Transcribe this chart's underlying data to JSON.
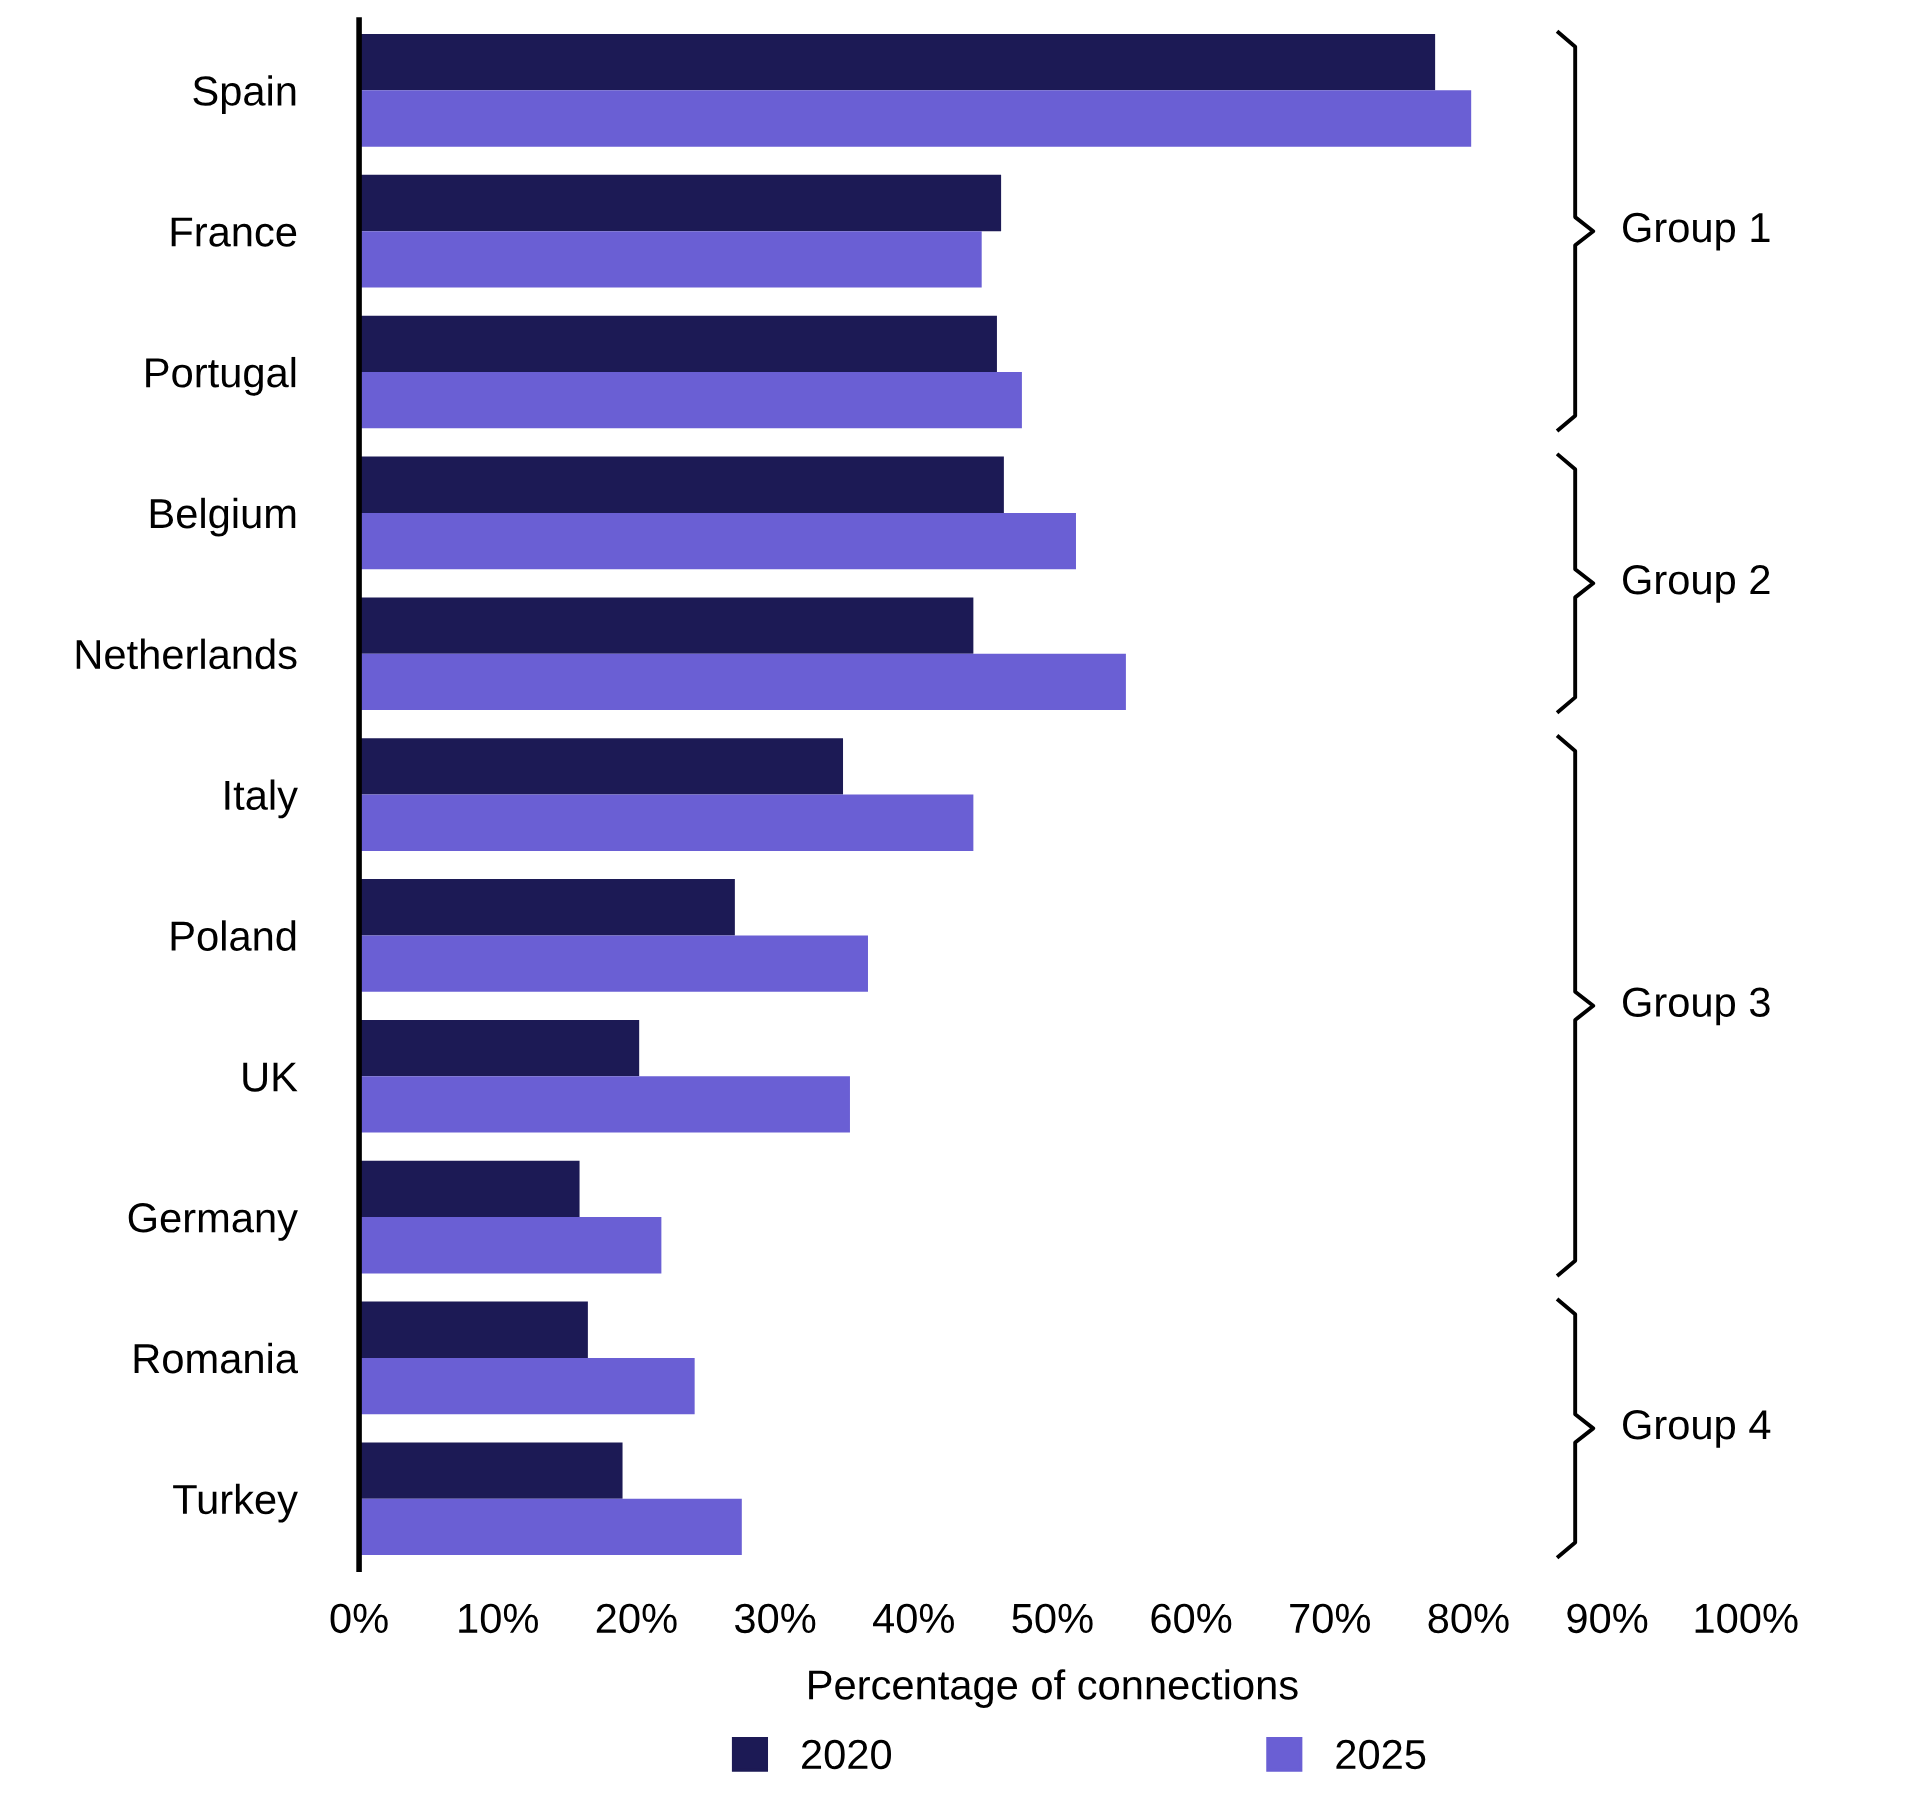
{
  "chart_data": {
    "type": "bar",
    "orientation": "horizontal",
    "xlabel": "Percentage of connections",
    "categories": [
      "Spain",
      "France",
      "Portugal",
      "Belgium",
      "Netherlands",
      "Italy",
      "Poland",
      "UK",
      "Germany",
      "Romania",
      "Turkey"
    ],
    "series": [
      {
        "name": "2020",
        "color": "#1c1a55",
        "values": [
          77.6,
          46.3,
          46.0,
          46.5,
          44.3,
          34.9,
          27.1,
          20.2,
          15.9,
          16.5,
          19.0
        ]
      },
      {
        "name": "2025",
        "color": "#6a5fd4",
        "values": [
          80.2,
          44.9,
          47.8,
          51.7,
          55.3,
          44.3,
          36.7,
          35.4,
          21.8,
          24.2,
          27.6
        ]
      }
    ],
    "xlim": [
      0,
      100
    ],
    "xticks": [
      {
        "value": 0,
        "label": "0%"
      },
      {
        "value": 10,
        "label": "10%"
      },
      {
        "value": 20,
        "label": "20%"
      },
      {
        "value": 30,
        "label": "30%"
      },
      {
        "value": 40,
        "label": "40%"
      },
      {
        "value": 50,
        "label": "50%"
      },
      {
        "value": 60,
        "label": "60%"
      },
      {
        "value": 70,
        "label": "70%"
      },
      {
        "value": 80,
        "label": "80%"
      },
      {
        "value": 90,
        "label": "90%"
      },
      {
        "value": 100,
        "label": "100%"
      }
    ],
    "annotations": [
      "Group 1",
      "Group 2",
      "Group 3",
      "Group 4"
    ],
    "grid": false,
    "legend": "bottom"
  }
}
